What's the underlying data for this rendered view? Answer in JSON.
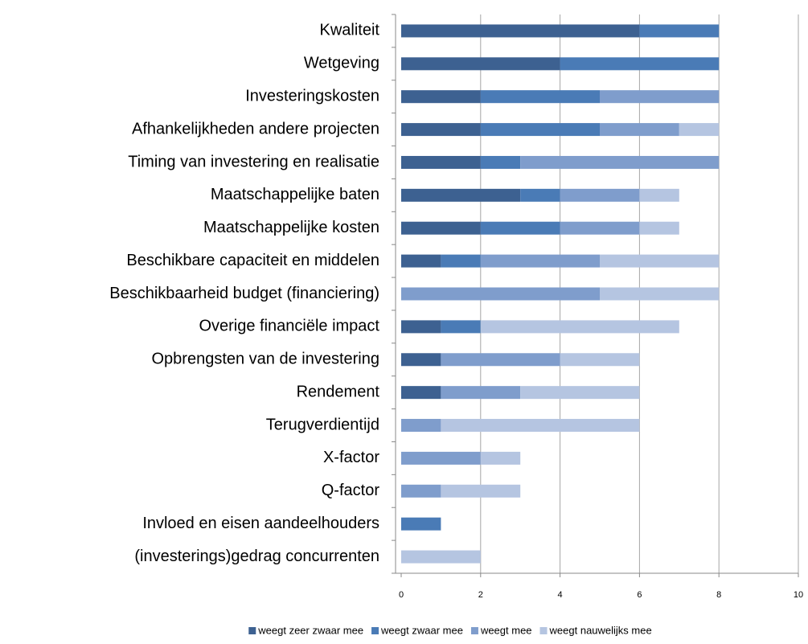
{
  "chart_data": {
    "type": "bar",
    "orientation": "horizontal",
    "stacked": true,
    "categories": [
      "Kwaliteit",
      "Wetgeving",
      "Investeringskosten",
      "Afhankelijkheden andere projecten",
      "Timing van investering en realisatie",
      "Maatschappelijke baten",
      "Maatschappelijke kosten",
      "Beschikbare capaciteit en middelen",
      "Beschikbaarheid budget (financiering)",
      "Overige financiële impact",
      "Opbrengsten van de investering",
      "Rendement",
      "Terugverdientijd",
      "X-factor",
      "Q-factor",
      "Invloed en eisen aandeelhouders",
      "(investerings)gedrag concurrenten"
    ],
    "series": [
      {
        "name": "weegt zeer zwaar mee",
        "color": "#3d6191",
        "values": [
          6,
          4,
          2,
          2,
          2,
          3,
          2,
          1,
          0,
          1,
          1,
          1,
          0,
          0,
          0,
          0,
          0
        ]
      },
      {
        "name": "weegt zwaar mee",
        "color": "#4a7bb6",
        "values": [
          2,
          4,
          3,
          3,
          1,
          1,
          2,
          1,
          0,
          1,
          0,
          0,
          0,
          0,
          0,
          1,
          0
        ]
      },
      {
        "name": "weegt mee",
        "color": "#7f9dcc",
        "values": [
          0,
          0,
          3,
          2,
          5,
          2,
          2,
          3,
          5,
          0,
          3,
          2,
          1,
          2,
          1,
          0,
          0
        ]
      },
      {
        "name": "weegt nauwelijks mee",
        "color": "#b5c5e1",
        "values": [
          0,
          0,
          0,
          1,
          0,
          1,
          1,
          3,
          3,
          5,
          2,
          3,
          5,
          1,
          2,
          0,
          2
        ]
      }
    ],
    "xlim": [
      0,
      10
    ],
    "xticks": [
      0,
      2,
      4,
      6,
      8,
      10
    ],
    "grid": true,
    "legend": "bottom"
  }
}
